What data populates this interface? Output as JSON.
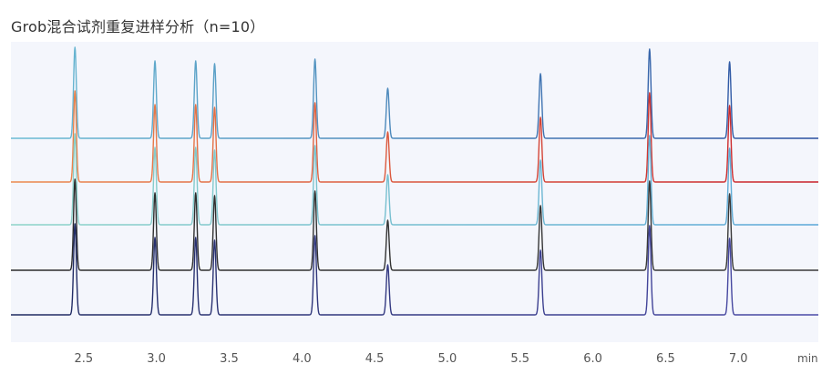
{
  "title": "Grob混合试剂重复进样分析（n=10）",
  "chart_data": {
    "type": "line",
    "title": "Grob混合试剂重复进样分析（n=10）",
    "xlabel": "min",
    "ylabel": "",
    "xlim": [
      2.0,
      7.55
    ],
    "grid": false,
    "ticks": [
      {
        "value": 2.5,
        "label": "2.5"
      },
      {
        "value": 3.0,
        "label": "3.0"
      },
      {
        "value": 3.5,
        "label": "3.5"
      },
      {
        "value": 4.0,
        "label": "4.0"
      },
      {
        "value": 4.5,
        "label": "4.5"
      },
      {
        "value": 5.0,
        "label": "5.0"
      },
      {
        "value": 5.5,
        "label": "5.5"
      },
      {
        "value": 6.0,
        "label": "6.0"
      },
      {
        "value": 6.5,
        "label": "6.5"
      },
      {
        "value": 7.0,
        "label": "7.0"
      }
    ],
    "peaks_rt": [
      2.44,
      2.99,
      3.27,
      3.4,
      4.09,
      4.59,
      5.64,
      6.39,
      6.94
    ],
    "series": [
      {
        "color_start": "#6bbcd4",
        "color_end": "#2a4fa0",
        "heights": [
          1.0,
          0.85,
          0.85,
          0.82,
          0.87,
          0.55,
          0.71,
          0.98,
          0.84
        ]
      },
      {
        "color_start": "#ec8a4e",
        "color_end": "#c8202a",
        "heights": [
          1.0,
          0.85,
          0.85,
          0.82,
          0.87,
          0.55,
          0.71,
          0.98,
          0.84
        ]
      },
      {
        "color_start": "#8ed4c8",
        "color_end": "#5aa7d8",
        "heights": [
          1.0,
          0.85,
          0.85,
          0.82,
          0.87,
          0.55,
          0.71,
          0.98,
          0.84
        ]
      },
      {
        "color_start": "#2b2b2b",
        "color_end": "#3a3a3a",
        "heights": [
          1.0,
          0.85,
          0.85,
          0.82,
          0.87,
          0.55,
          0.71,
          0.98,
          0.84
        ]
      },
      {
        "color_start": "#1f2a60",
        "color_end": "#4b4ba8",
        "heights": [
          1.0,
          0.85,
          0.85,
          0.82,
          0.87,
          0.55,
          0.71,
          0.98,
          0.84
        ]
      }
    ]
  },
  "colors": {
    "plot_background": "#f4f6fc",
    "page_background": "#ffffff"
  }
}
